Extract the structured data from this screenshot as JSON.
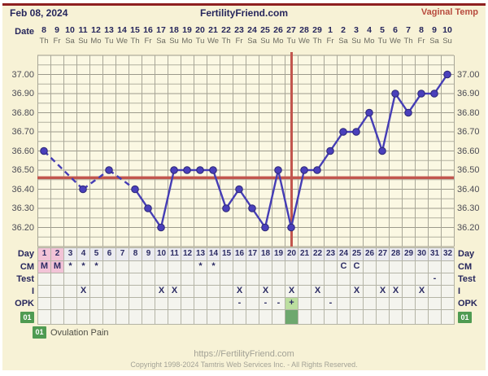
{
  "header": {
    "date": "Feb 08, 2024",
    "site": "FertilityFriend.com",
    "temp_label": "Vaginal Temp"
  },
  "axis": {
    "row_label_date": "Date",
    "dates": [
      "8",
      "9",
      "10",
      "11",
      "12",
      "13",
      "14",
      "15",
      "16",
      "17",
      "18",
      "19",
      "20",
      "21",
      "22",
      "23",
      "24",
      "25",
      "26",
      "27",
      "28",
      "29",
      "1",
      "2",
      "3",
      "4",
      "5",
      "6",
      "7",
      "8",
      "9",
      "10"
    ],
    "weekdays": [
      "Th",
      "Fr",
      "Sa",
      "Su",
      "Mo",
      "Tu",
      "We",
      "Th",
      "Fr",
      "Sa",
      "Su",
      "Mo",
      "Tu",
      "We",
      "Th",
      "Fr",
      "Sa",
      "Su",
      "Mo",
      "Tu",
      "We",
      "Th",
      "Fr",
      "Sa",
      "Su",
      "Mo",
      "Tu",
      "We",
      "Th",
      "Fr",
      "Sa",
      "Su"
    ],
    "temp_tick_labels": [
      "37.00",
      "36.90",
      "36.80",
      "36.70",
      "36.60",
      "36.50",
      "36.40",
      "36.30",
      "36.20"
    ]
  },
  "chart_data": {
    "type": "line",
    "title": "Basal body temperature cycle chart",
    "x_days": [
      1,
      2,
      3,
      4,
      5,
      6,
      7,
      8,
      9,
      10,
      11,
      12,
      13,
      14,
      15,
      16,
      17,
      18,
      19,
      20,
      21,
      22,
      23,
      24,
      25,
      26,
      27,
      28,
      29,
      30,
      31,
      32
    ],
    "series": [
      {
        "name": "Vaginal Temp",
        "values": [
          36.6,
          null,
          null,
          36.4,
          null,
          36.5,
          null,
          36.4,
          36.3,
          36.2,
          36.5,
          36.5,
          36.5,
          36.5,
          36.3,
          36.4,
          36.3,
          36.2,
          36.5,
          36.2,
          36.5,
          36.5,
          36.6,
          36.7,
          36.7,
          36.8,
          36.6,
          36.9,
          36.8,
          36.9,
          36.9,
          37.0
        ]
      }
    ],
    "ylim": [
      36.1,
      37.1
    ],
    "y_label_step": 0.1,
    "y_grid_step": 0.05,
    "coverline_temp": 36.46,
    "ovulation_day": 20,
    "grid": true,
    "missing_days_style": "dashed"
  },
  "table": {
    "rows": [
      {
        "id": "day",
        "label": "Day",
        "cells": [
          "1",
          "2",
          "3",
          "4",
          "5",
          "6",
          "7",
          "8",
          "9",
          "10",
          "11",
          "12",
          "13",
          "14",
          "15",
          "16",
          "17",
          "18",
          "19",
          "20",
          "21",
          "22",
          "23",
          "24",
          "25",
          "26",
          "27",
          "28",
          "29",
          "30",
          "31",
          "32"
        ]
      },
      {
        "id": "cm",
        "label": "CM",
        "cells": [
          "M",
          "M",
          "*",
          "*",
          "*",
          "",
          "",
          "",
          "",
          "",
          "",
          "",
          "*",
          "*",
          "",
          "",
          "",
          "",
          "",
          "",
          "",
          "",
          "",
          "C",
          "C",
          "",
          "",
          "",
          "",
          "",
          "",
          ""
        ]
      },
      {
        "id": "test",
        "label": "Test",
        "cells": [
          "",
          "",
          "",
          "",
          "",
          "",
          "",
          "",
          "",
          "",
          "",
          "",
          "",
          "",
          "",
          "",
          "",
          "",
          "",
          "",
          "",
          "",
          "",
          "",
          "",
          "",
          "",
          "",
          "",
          "",
          "-",
          ""
        ]
      },
      {
        "id": "intercourse",
        "label": "I",
        "cells": [
          "",
          "",
          "",
          "X",
          "",
          "",
          "",
          "",
          "",
          "X",
          "X",
          "",
          "",
          "",
          "",
          "X",
          "",
          "X",
          "",
          "X",
          "",
          "X",
          "",
          "",
          "X",
          "",
          "X",
          "X",
          "",
          "X",
          "",
          ""
        ]
      },
      {
        "id": "opk",
        "label": "OPK",
        "cells": [
          "",
          "",
          "",
          "",
          "",
          "",
          "",
          "",
          "",
          "",
          "",
          "",
          "",
          "",
          "",
          "-",
          "",
          "-",
          "-",
          "+",
          "",
          "",
          "-",
          "",
          "",
          "",
          "",
          "",
          "",
          "",
          "",
          ""
        ]
      },
      {
        "id": "events",
        "label": "01",
        "cells": [
          "",
          "",
          "",
          "",
          "",
          "",
          "",
          "",
          "",
          "",
          "",
          "",
          "",
          "",
          "",
          "",
          "",
          "",
          "",
          "",
          "",
          "",
          "",
          "",
          "",
          "",
          "",
          "",
          "",
          "",
          "",
          ""
        ]
      }
    ],
    "menses_days": [
      1,
      2
    ],
    "opk_positive_day": 20,
    "event_day": 20
  },
  "legend": {
    "badge": "01",
    "text": "Ovulation Pain"
  },
  "footer": {
    "url": "https://FertilityFriend.com",
    "copyright": "Copyright 1998-2024 Tamtris Web Services Inc. - All Rights Reserved."
  },
  "colors": {
    "background": "#f7f2d6",
    "top_bar": "#8e2020",
    "navy_text": "#26265c",
    "temp_line": "#453db5",
    "point_fill": "#4a40bb",
    "point_stroke": "#2c2777",
    "red_line": "#c2564e",
    "grid_line": "#a8a697",
    "grid_bg": "#fbf8e3",
    "menses_pink": "#f2c3d7",
    "opk_positive_green": "#bcdf9f",
    "event_green": "#6ea86e",
    "badge_green": "#4f9b52"
  }
}
